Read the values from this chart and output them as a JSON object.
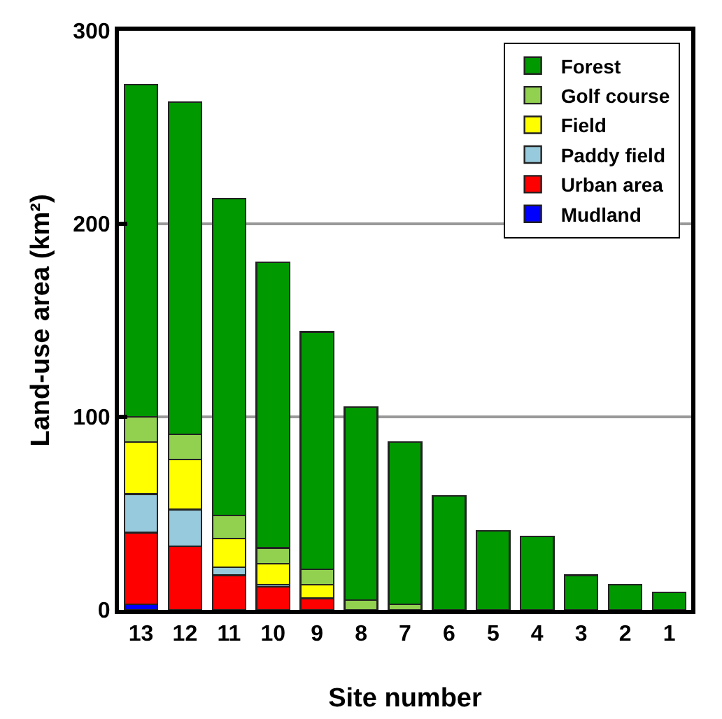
{
  "chart_data": {
    "type": "bar",
    "stacked": true,
    "xlabel": "Site number",
    "ylabel": "Land-use area (km²)",
    "categories": [
      "13",
      "12",
      "11",
      "10",
      "9",
      "8",
      "7",
      "6",
      "5",
      "4",
      "3",
      "2",
      "1"
    ],
    "series": [
      {
        "name": "Mudland",
        "color": "#0000ff",
        "values": [
          3,
          0,
          0,
          0,
          0,
          0,
          0,
          0,
          0,
          0,
          0,
          0,
          0
        ]
      },
      {
        "name": "Urban area",
        "color": "#ff0000",
        "values": [
          37,
          33,
          18,
          12,
          6,
          0,
          0,
          0,
          0,
          0,
          0,
          0,
          0
        ]
      },
      {
        "name": "Paddy field",
        "color": "#96cadc",
        "values": [
          20,
          19,
          4,
          1,
          0,
          0,
          0,
          0,
          0,
          0,
          0,
          0,
          0
        ]
      },
      {
        "name": "Field",
        "color": "#ffff00",
        "values": [
          27,
          26,
          15,
          11,
          7,
          0,
          0,
          0,
          0,
          0,
          0,
          0,
          0
        ]
      },
      {
        "name": "Golf course",
        "color": "#92d050",
        "values": [
          13,
          13,
          12,
          8,
          8,
          5,
          3,
          0,
          0,
          0,
          0,
          0,
          0
        ]
      },
      {
        "name": "Forest",
        "color": "#009900",
        "values": [
          172,
          172,
          164,
          148,
          123,
          100,
          84,
          59,
          41,
          38,
          18,
          13,
          9
        ]
      }
    ],
    "ylim": [
      0,
      300
    ],
    "yticks": [
      0,
      100,
      200,
      300
    ],
    "grid": "y",
    "legend": "top right"
  }
}
